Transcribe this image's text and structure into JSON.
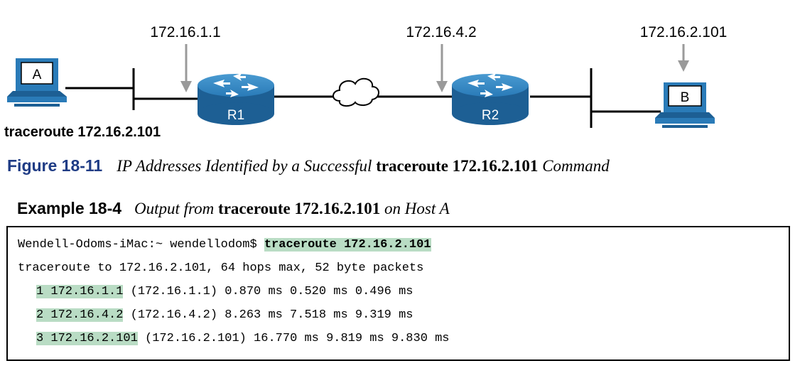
{
  "diagram": {
    "labels": {
      "hop1_ip": "172.16.1.1",
      "hop2_ip": "172.16.4.2",
      "dest_ip": "172.16.2.101",
      "router1": "R1",
      "router2": "R2",
      "host_a": "A",
      "host_b": "B",
      "command": "traceroute 172.16.2.101"
    },
    "colors": {
      "router": "#1a6fa8",
      "arrow": "#9a9a9a",
      "host": "#1a6fa8"
    }
  },
  "figure": {
    "number": "Figure 18-11",
    "caption_a": "IP Addresses Identified by a Successful ",
    "caption_cmd": "traceroute 172.16.2.101",
    "caption_b": " Command"
  },
  "example": {
    "number": "Example 18-4",
    "caption_a": "Output from ",
    "caption_cmd": "traceroute 172.16.2.101",
    "caption_b": " on Host A"
  },
  "console": {
    "prompt": "Wendell-Odoms-iMac:~ wendellodom$ ",
    "command": "traceroute 172.16.2.101",
    "header": "traceroute to 172.16.2.101, 64 hops max, 52 byte packets",
    "hops": [
      {
        "hop": "1 172.16.1.1",
        "rest": " (172.16.1.1) 0.870 ms 0.520 ms 0.496 ms"
      },
      {
        "hop": "2 172.16.4.2",
        "rest": " (172.16.4.2) 8.263 ms 7.518 ms 9.319 ms"
      },
      {
        "hop": "3 172.16.2.101",
        "rest": " (172.16.2.101) 16.770 ms 9.819 ms 9.830 ms"
      }
    ]
  }
}
